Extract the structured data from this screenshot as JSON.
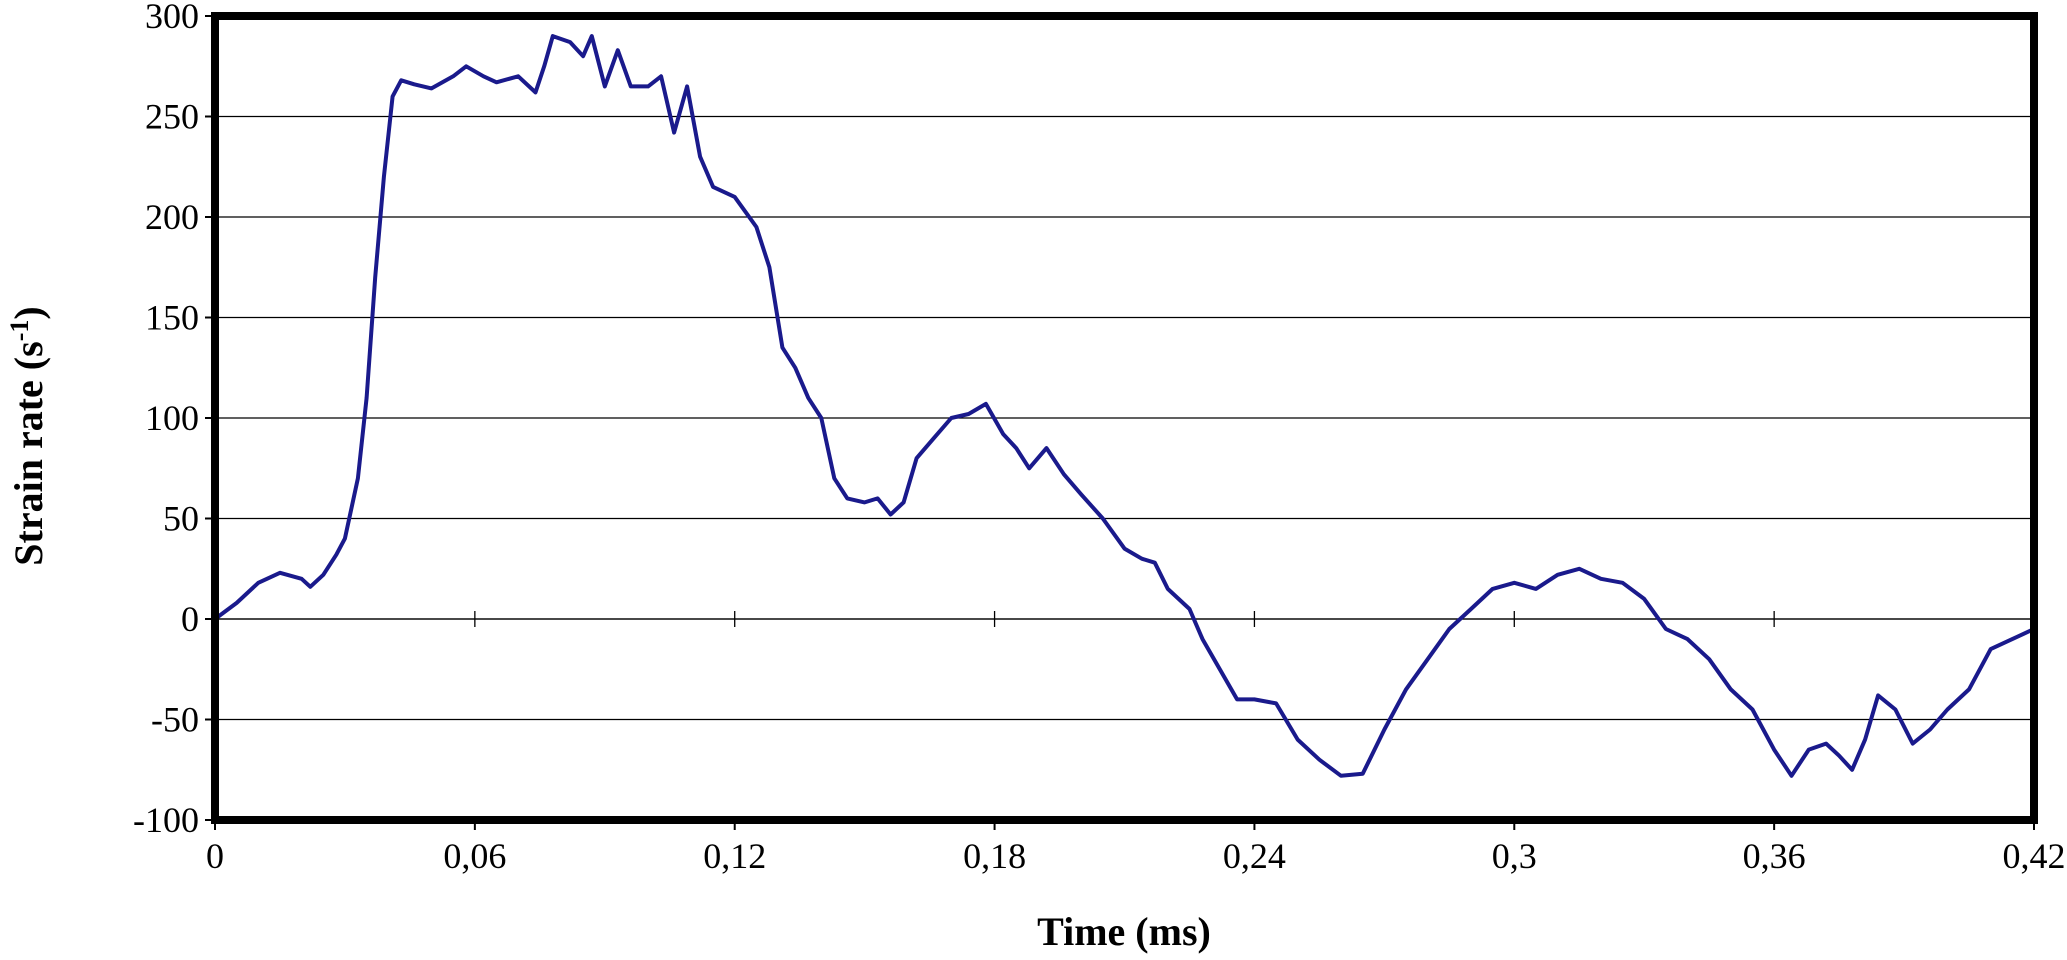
{
  "chart_data": {
    "type": "line",
    "xlabel": "Time (ms)",
    "ylabel": [
      "Strain rate (s",
      "-1",
      ")"
    ],
    "xlim": [
      0,
      0.42
    ],
    "xticks": [
      0,
      {
        "value": 0.06,
        "label": "0,06"
      },
      {
        "value": 0.12,
        "label": "0,12"
      },
      {
        "value": 0.18,
        "label": "0,18"
      },
      {
        "value": 0.24,
        "label": "0,24"
      },
      {
        "value": 0.3,
        "label": "0,3"
      },
      {
        "value": 0.36,
        "label": "0,36"
      },
      {
        "value": 0.42,
        "label": "0,42"
      }
    ],
    "ylim": [
      -100,
      300
    ],
    "yticks": [
      -100,
      -50,
      0,
      50,
      100,
      150,
      200,
      250,
      300
    ],
    "grid": true,
    "series": [
      {
        "color": "#1a1a8c",
        "x": [
          0,
          0.005,
          0.01,
          0.015,
          0.02,
          0.022,
          0.025,
          0.028,
          0.03,
          0.033,
          0.035,
          0.037,
          0.039,
          0.041,
          0.043,
          0.046,
          0.05,
          0.055,
          0.058,
          0.062,
          0.065,
          0.07,
          0.074,
          0.076,
          0.078,
          0.082,
          0.085,
          0.087,
          0.09,
          0.093,
          0.096,
          0.1,
          0.103,
          0.106,
          0.109,
          0.112,
          0.115,
          0.12,
          0.125,
          0.128,
          0.131,
          0.134,
          0.137,
          0.14,
          0.143,
          0.146,
          0.15,
          0.153,
          0.156,
          0.159,
          0.162,
          0.166,
          0.17,
          0.174,
          0.178,
          0.182,
          0.185,
          0.188,
          0.192,
          0.196,
          0.2,
          0.205,
          0.21,
          0.214,
          0.217,
          0.22,
          0.225,
          0.228,
          0.232,
          0.236,
          0.24,
          0.245,
          0.25,
          0.255,
          0.26,
          0.265,
          0.27,
          0.275,
          0.28,
          0.285,
          0.29,
          0.295,
          0.3,
          0.305,
          0.31,
          0.315,
          0.32,
          0.325,
          0.33,
          0.335,
          0.34,
          0.345,
          0.35,
          0.355,
          0.36,
          0.364,
          0.368,
          0.372,
          0.375,
          0.378,
          0.381,
          0.384,
          0.388,
          0.392,
          0.396,
          0.4,
          0.405,
          0.41,
          0.415,
          0.42
        ],
        "values": [
          0,
          8,
          18,
          23,
          20,
          16,
          22,
          32,
          40,
          70,
          110,
          170,
          220,
          260,
          268,
          266,
          264,
          270,
          275,
          270,
          267,
          270,
          262,
          275,
          290,
          287,
          280,
          290,
          265,
          283,
          265,
          265,
          270,
          242,
          265,
          230,
          215,
          210,
          195,
          175,
          135,
          125,
          110,
          100,
          70,
          60,
          58,
          60,
          52,
          58,
          80,
          90,
          100,
          102,
          107,
          92,
          85,
          75,
          85,
          72,
          62,
          50,
          35,
          30,
          28,
          15,
          5,
          -10,
          -25,
          -40,
          -40,
          -42,
          -60,
          -70,
          -78,
          -77,
          -55,
          -35,
          -20,
          -5,
          5,
          15,
          18,
          15,
          22,
          25,
          20,
          18,
          10,
          -5,
          -10,
          -20,
          -35,
          -45,
          -65,
          -78,
          -65,
          -62,
          -68,
          -75,
          -60,
          -38,
          -45,
          -62,
          -55,
          -45,
          -35,
          -15,
          -10,
          -5
        ]
      }
    ]
  }
}
